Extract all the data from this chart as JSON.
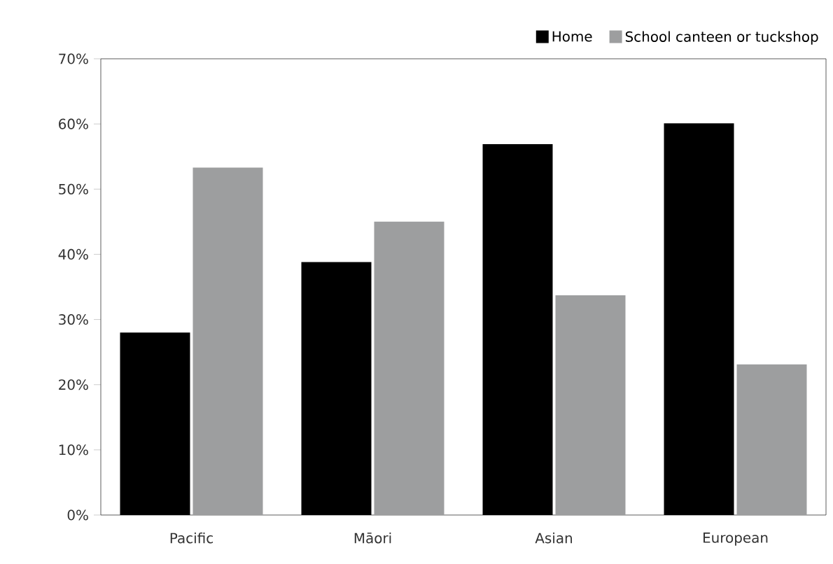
{
  "chart_data": {
    "type": "bar",
    "categories": [
      "Pacific",
      "Māori",
      "Asian",
      "European"
    ],
    "series": [
      {
        "name": "Home",
        "color": "#000000",
        "values": [
          28,
          38.8,
          56.9,
          60.1
        ]
      },
      {
        "name": "School canteen or tuckshop",
        "color": "#9d9e9f",
        "values": [
          53.3,
          45,
          33.7,
          23.1
        ]
      }
    ],
    "ylim": [
      0,
      70
    ],
    "yticks": [
      {
        "value": 0,
        "label": "0%"
      },
      {
        "value": 10,
        "label": "10%"
      },
      {
        "value": 20,
        "label": "20%"
      },
      {
        "value": 30,
        "label": "30%"
      },
      {
        "value": 40,
        "label": "40%"
      },
      {
        "value": 50,
        "label": "50%"
      },
      {
        "value": 60,
        "label": "60%"
      },
      {
        "value": 70,
        "label": "70%"
      }
    ],
    "grid": false,
    "legend": "top right"
  }
}
